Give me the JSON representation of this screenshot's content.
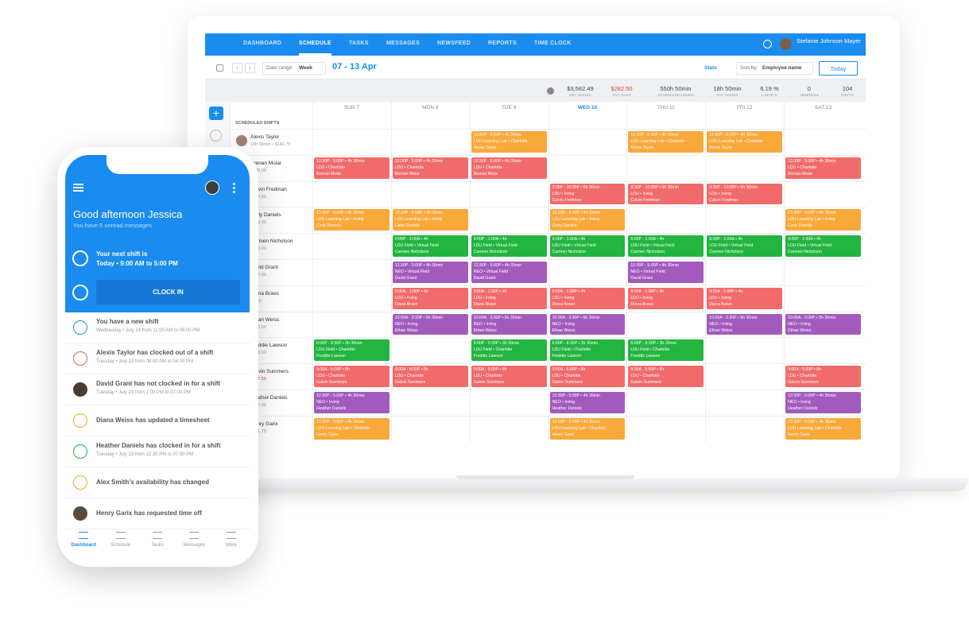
{
  "app": {
    "nav": [
      "DASHBOARD",
      "SCHEDULE",
      "TASKS",
      "MESSAGES",
      "NEWSFEED",
      "REPORTS",
      "TIME CLOCK"
    ],
    "active_nav": 1,
    "user": "Stefanie Johnson Mayer",
    "toolbar": {
      "date_range_label": "Date range:",
      "date_range_value": "Week",
      "week": "07 - 13 Apr",
      "stats": "Stats",
      "sort_label": "Sort by:",
      "sort_value": "Employee name",
      "today": "Today"
    },
    "stats": [
      {
        "value": "$3,582.49",
        "label": "EST. WAGES"
      },
      {
        "value": "$282.50",
        "label": "OVT COST",
        "color": "#e53935"
      },
      {
        "value": "550h 50min",
        "label": "SCHEDULED HOURS"
      },
      {
        "value": "18h 50min",
        "label": "OVT HOURS"
      },
      {
        "value": "6.19 %",
        "label": "LABOR %"
      },
      {
        "value": "0",
        "label": "ABSENCES"
      },
      {
        "value": "104",
        "label": "SHIFTS"
      }
    ],
    "days": [
      "SUN 7",
      "MON 8",
      "TUE 9",
      "WED 10",
      "THU 11",
      "FRI 12",
      "SAT 13"
    ],
    "active_day": 3,
    "section": "SCHEDULED SHIFTS",
    "employees": [
      {
        "name": "Alexis Taylor",
        "sub": "13h 30min • $141.75",
        "shifts": [
          {
            "day": 2,
            "time": "12:30P - 5:00P • 4h 30min",
            "place": "LDU Learning Lab • Charlotte",
            "color": "#f9a83a"
          },
          {
            "day": 4,
            "time": "12:30P - 5:00P • 4h 30min",
            "place": "LDU Learning Lab • Charlotte",
            "color": "#f9a83a"
          },
          {
            "day": 5,
            "time": "12:30P - 5:00P • 4h 30min",
            "place": "LDU Learning Lab • Charlotte",
            "color": "#f9a83a"
          }
        ]
      },
      {
        "name": "Brenan Molar",
        "sub": "$180.00",
        "shifts": [
          {
            "day": 0,
            "time": "12:30P - 5:00P • 4h 30min",
            "place": "LDU • Charlotte",
            "color": "#f26b6b"
          },
          {
            "day": 1,
            "time": "12:30P - 5:00P • 4h 30min",
            "place": "LDU • Charlotte",
            "color": "#f26b6b"
          },
          {
            "day": 2,
            "time": "12:30P - 5:00P • 4h 30min",
            "place": "LDU • Charlotte",
            "color": "#f26b6b"
          },
          {
            "day": 6,
            "time": "12:30P - 5:00P • 4h 30min",
            "place": "LDU • Charlotte",
            "color": "#f26b6b"
          }
        ]
      },
      {
        "name": "Calvin Fredman",
        "sub": "$292.50",
        "shifts": [
          {
            "day": 3,
            "time": "3:30P - 10:00P • 6h 30min",
            "place": "LDU • Irving",
            "color": "#f26b6b"
          },
          {
            "day": 4,
            "time": "3:30P - 10:00P • 6h 30min",
            "place": "LDU • Irving",
            "color": "#f26b6b"
          },
          {
            "day": 5,
            "time": "3:30P - 10:00P • 6h 30min",
            "place": "LDU • Irving",
            "color": "#f26b6b"
          }
        ]
      },
      {
        "name": "Carly Daniels",
        "sub": "$189.00",
        "shifts": [
          {
            "day": 0,
            "time": "12:30P - 5:00P • 4h 30min",
            "place": "LDU Learning Lab • Irving",
            "color": "#f9a83a"
          },
          {
            "day": 1,
            "time": "12:30P - 5:00P • 4h 30min",
            "place": "LDU Learning Lab • Irving",
            "color": "#f9a83a"
          },
          {
            "day": 3,
            "time": "12:30P - 5:00P • 4h 30min",
            "place": "LDU Learning Lab • Irving",
            "color": "#f9a83a"
          },
          {
            "day": 6,
            "time": "12:30P - 5:00P • 4h 30min",
            "place": "LDU Learning Lab • Irving",
            "color": "#f9a83a"
          }
        ]
      },
      {
        "name": "Carmen Nicholson",
        "sub": "$276.00",
        "shifts": [
          {
            "day": 1,
            "time": "9:00P - 1:00A • 4h",
            "place": "LDU Field • Virtual Field",
            "color": "#22b53f"
          },
          {
            "day": 2,
            "time": "9:00P - 1:00A • 4h",
            "place": "LDU Field • Virtual Field",
            "color": "#22b53f"
          },
          {
            "day": 3,
            "time": "9:00P - 1:00A • 4h",
            "place": "LDU Field • Virtual Field",
            "color": "#22b53f"
          },
          {
            "day": 4,
            "time": "9:00P - 1:00A • 4h",
            "place": "LDU Field • Virtual Field",
            "color": "#22b53f"
          },
          {
            "day": 5,
            "time": "9:00P - 1:00A • 4h",
            "place": "LDU Field • Virtual Field",
            "color": "#22b53f"
          },
          {
            "day": 6,
            "time": "9:00P - 1:00A • 4h",
            "place": "LDU Field • Virtual Field",
            "color": "#22b53f"
          }
        ]
      },
      {
        "name": "David Grant",
        "sub": "$297.00",
        "shifts": [
          {
            "day": 1,
            "time": "12:30P - 5:00P • 4h 30min",
            "place": "NEO • Virtual Field",
            "color": "#a25bbd"
          },
          {
            "day": 2,
            "time": "12:30P - 5:00P • 4h 30min",
            "place": "NEO • Virtual Field",
            "color": "#a25bbd"
          },
          {
            "day": 4,
            "time": "12:30P - 5:00P • 4h 30min",
            "place": "NEO • Virtual Field",
            "color": "#a25bbd"
          }
        ]
      },
      {
        "name": "Diana Bravo",
        "sub": "$5.00",
        "shifts": [
          {
            "day": 1,
            "time": "9:00A - 1:00P • 4h",
            "place": "LDU • Irving",
            "color": "#f26b6b"
          },
          {
            "day": 2,
            "time": "9:00A - 1:00P • 4h",
            "place": "LDU • Irving",
            "color": "#f26b6b"
          },
          {
            "day": 3,
            "time": "9:00A - 1:00P • 4h",
            "place": "LDU • Irving",
            "color": "#f26b6b"
          },
          {
            "day": 4,
            "time": "9:00A - 1:00P • 4h",
            "place": "LDU • Irving",
            "color": "#f26b6b"
          },
          {
            "day": 5,
            "time": "9:00A - 1:00P • 4h",
            "place": "LDU • Irving",
            "color": "#f26b6b"
          }
        ]
      },
      {
        "name": "Ethan Weiss",
        "sub": "$605.00",
        "shifts": [
          {
            "day": 1,
            "time": "10:00A - 3:30P • 5h 30min",
            "place": "NEO • Irving",
            "color": "#a25bbd"
          },
          {
            "day": 2,
            "time": "10:00A - 3:30P • 5h 30min",
            "place": "NEO • Irving",
            "color": "#a25bbd"
          },
          {
            "day": 3,
            "time": "10:00A - 3:30P • 5h 30min",
            "place": "NEO • Irving",
            "color": "#a25bbd"
          },
          {
            "day": 5,
            "time": "10:00A - 3:30P • 5h 30min",
            "place": "NEO • Irving",
            "color": "#a25bbd"
          },
          {
            "day": 6,
            "time": "10:00A - 3:30P • 5h 30min",
            "place": "NEO • Irving",
            "color": "#a25bbd"
          }
        ]
      },
      {
        "name": "Freddie Lawson",
        "sub": "$148.00",
        "shifts": [
          {
            "day": 0,
            "time": "6:00P - 9:30P • 3h 30min",
            "place": "LDU Field • Charlotte",
            "color": "#22b53f"
          },
          {
            "day": 2,
            "time": "6:00P - 9:30P • 3h 30min",
            "place": "LDU Field • Charlotte",
            "color": "#22b53f"
          },
          {
            "day": 3,
            "time": "6:00P - 9:30P • 3h 30min",
            "place": "LDU Field • Charlotte",
            "color": "#22b53f"
          },
          {
            "day": 4,
            "time": "6:00P - 9:30P • 3h 30min",
            "place": "LDU Field • Charlotte",
            "color": "#22b53f"
          }
        ]
      },
      {
        "name": "Galvin Summers",
        "sub": "$467.50",
        "sub_color": "#e53935",
        "shifts": [
          {
            "day": 0,
            "time": "9:00A - 5:00P • 8h",
            "place": "LDU • Charlotte",
            "color": "#f26b6b"
          },
          {
            "day": 1,
            "time": "9:00A - 5:00P • 8h",
            "place": "LDU • Charlotte",
            "color": "#f26b6b"
          },
          {
            "day": 2,
            "time": "9:00A - 5:00P • 8h",
            "place": "LDU • Charlotte",
            "color": "#f26b6b"
          },
          {
            "day": 3,
            "time": "9:00A - 5:00P • 8h",
            "place": "LDU • Charlotte",
            "color": "#f26b6b"
          },
          {
            "day": 4,
            "time": "9:00A - 5:00P • 8h",
            "place": "LDU • Charlotte",
            "color": "#f26b6b"
          },
          {
            "day": 6,
            "time": "9:00A - 5:00P • 8h",
            "place": "LDU • Charlotte",
            "color": "#f26b6b"
          }
        ]
      },
      {
        "name": "Heather Daniels",
        "sub": "$297.00",
        "shifts": [
          {
            "day": 0,
            "time": "12:30P - 5:00P • 4h 30min",
            "place": "NEO • Irving",
            "color": "#a25bbd"
          },
          {
            "day": 3,
            "time": "12:30P - 5:00P • 4h 30min",
            "place": "NEO • Irving",
            "color": "#a25bbd"
          },
          {
            "day": 6,
            "time": "12:30P - 5:00P • 4h 30min",
            "place": "NEO • Irving",
            "color": "#a25bbd"
          }
        ]
      },
      {
        "name": "Henry Garix",
        "sub": "$141.75",
        "shifts": [
          {
            "day": 0,
            "time": "12:30P - 5:00P • 4h 30min",
            "place": "LDU Learning Lab • Charlotte",
            "color": "#f9a83a"
          },
          {
            "day": 3,
            "time": "12:30P - 5:00P • 4h 30min",
            "place": "LDU Learning Lab • Charlotte",
            "color": "#f9a83a"
          },
          {
            "day": 6,
            "time": "12:30P - 5:00P • 4h 30min",
            "place": "LDU Learning Lab • Charlotte",
            "color": "#f9a83a"
          }
        ]
      }
    ]
  },
  "phone": {
    "greeting": "Good afternoon Jessica",
    "unread": "You have 5 unread messages",
    "next_shift_label": "Your next shift is",
    "next_shift": "Today • 9:00 AM to 5:00 PM",
    "clock_in": "CLOCK IN",
    "notifications": [
      {
        "title": "You have a new shift",
        "subtitle": "Wednesday • July 24 from 11:00 AM to 06:00 PM",
        "icon": "calendar",
        "color": "#1a8cf0"
      },
      {
        "title": "Alexis Taylor has clocked out of a shift",
        "subtitle": "Tuesday • July 23 from 08:00 AM to 04:00 PM",
        "icon": "clock",
        "color": "#e85a5a"
      },
      {
        "title": "David Grant has not clocked in for a shift",
        "subtitle": "Tuesday • July 23 from 1:00 PM to 07:00 PM",
        "icon": "avatar",
        "color": "#4a3b32"
      },
      {
        "title": "Diana Weiss has updated a timesheet",
        "icon": "clock",
        "color": "#f5a623"
      },
      {
        "title": "Heather Daniels has clocked in for a shift",
        "subtitle": "Tuesday • July 23 from 12:30 PM to 07:00 PM",
        "icon": "clock",
        "color": "#22b53f"
      },
      {
        "title": "Alex Smith's availability has changed",
        "icon": "clock",
        "color": "#f5a623"
      },
      {
        "title": "Henry Garix has requested time off",
        "icon": "avatar",
        "color": "#5a4a40"
      }
    ],
    "tabs": [
      "Dashboard",
      "Schedule",
      "Tasks",
      "Messages",
      "More"
    ],
    "active_tab": 0
  }
}
